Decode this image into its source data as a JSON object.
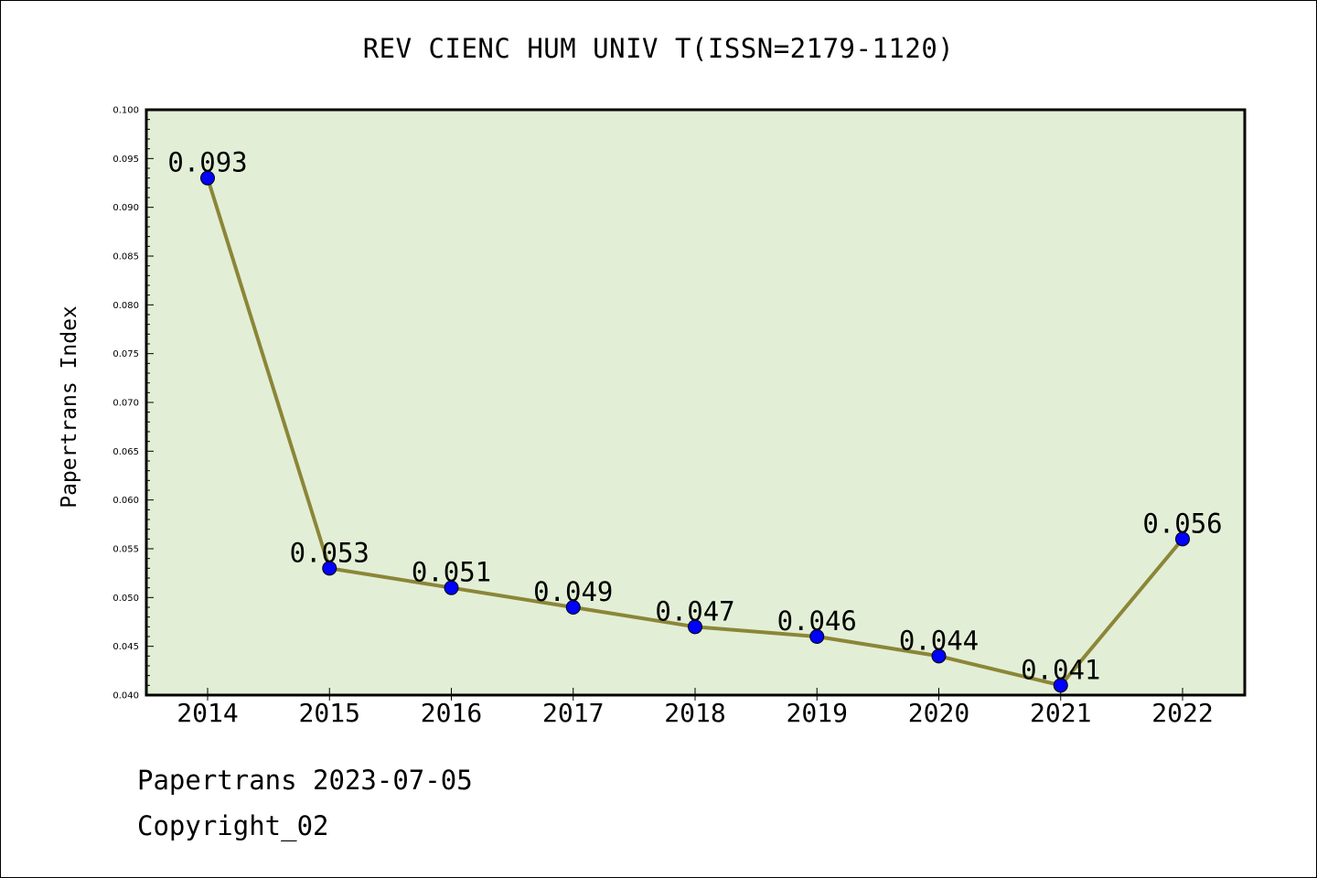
{
  "chart_data": {
    "type": "line",
    "title": "REV CIENC HUM UNIV T(ISSN=2179-1120)",
    "ylabel": "Papertrans Index",
    "xlabel": "",
    "x": [
      "2014",
      "2015",
      "2016",
      "2017",
      "2018",
      "2019",
      "2020",
      "2021",
      "2022"
    ],
    "series": [
      {
        "values": [
          0.093,
          0.053,
          0.051,
          0.049,
          0.047,
          0.046,
          0.044,
          0.041,
          0.056
        ],
        "labels": [
          "0.093",
          "0.053",
          "0.051",
          "0.049",
          "0.047",
          "0.046",
          "0.044",
          "0.041",
          "0.056"
        ]
      }
    ],
    "ylim": [
      0.04,
      0.1
    ],
    "yticks": [
      "0.040",
      "0.045",
      "0.050",
      "0.055",
      "0.060",
      "0.065",
      "0.070",
      "0.075",
      "0.080",
      "0.085",
      "0.090",
      "0.095",
      "0.100"
    ],
    "grid": false,
    "colors": {
      "plot_background": "#e2efd6",
      "line": "#8b8638",
      "marker": "#0000ff"
    }
  },
  "footer": {
    "line1": "Papertrans 2023-07-05",
    "line2": "Copyright_02"
  }
}
